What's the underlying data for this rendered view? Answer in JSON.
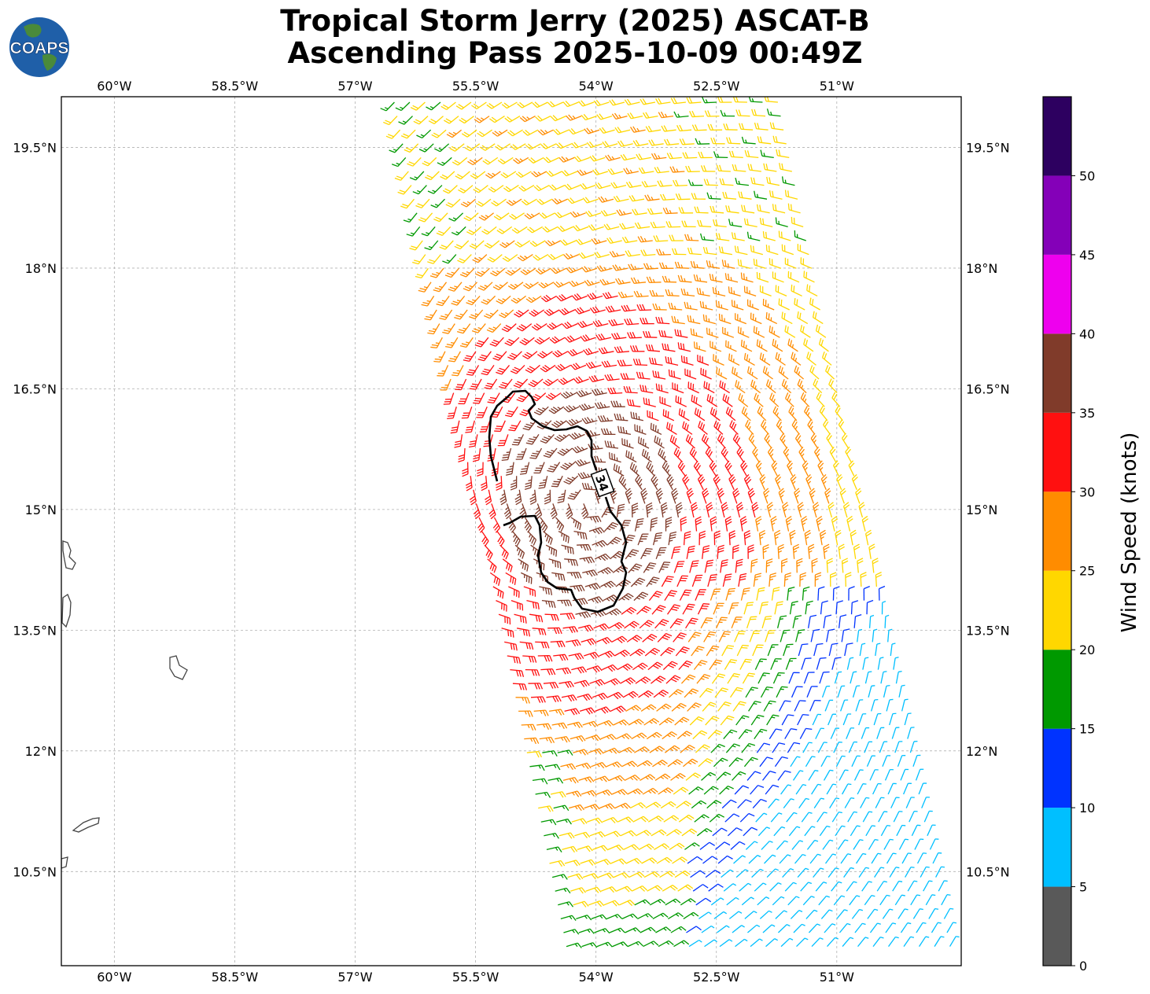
{
  "title": {
    "line1": "Tropical Storm Jerry (2025) ASCAT-B",
    "line2": "Ascending Pass 2025-10-09 00:49Z"
  },
  "logo": {
    "text": "COAPS",
    "ocean_color": "#1f5fa8",
    "land_color": "#4a8a3a"
  },
  "map": {
    "lon_range": [
      -60.66,
      -49.45
    ],
    "lat_range": [
      9.33,
      20.13
    ],
    "lon_ticks": [
      "60°W",
      "58.5°W",
      "57°W",
      "55.5°W",
      "54°W",
      "52.5°W",
      "51°W"
    ],
    "lat_ticks": [
      "19.5°N",
      "18°N",
      "16.5°N",
      "15°N",
      "13.5°N",
      "12°N",
      "10.5°N"
    ],
    "contour_label": "34",
    "land_outline_color": "#444444",
    "contour_color": "#000000"
  },
  "colorbar": {
    "label": "Wind Speed (knots)",
    "ticks": [
      "0",
      "5",
      "10",
      "15",
      "20",
      "25",
      "30",
      "35",
      "40",
      "45",
      "50"
    ],
    "bins": [
      {
        "min": 0,
        "max": 5,
        "color": "#595959"
      },
      {
        "min": 5,
        "max": 10,
        "color": "#00bfff"
      },
      {
        "min": 10,
        "max": 15,
        "color": "#0033ff"
      },
      {
        "min": 15,
        "max": 20,
        "color": "#009900"
      },
      {
        "min": 20,
        "max": 25,
        "color": "#ffd700"
      },
      {
        "min": 25,
        "max": 30,
        "color": "#ff8c00"
      },
      {
        "min": 30,
        "max": 35,
        "color": "#ff1010"
      },
      {
        "min": 35,
        "max": 40,
        "color": "#803b2a"
      },
      {
        "min": 40,
        "max": 45,
        "color": "#ee00ee"
      },
      {
        "min": 45,
        "max": 50,
        "color": "#8400b8"
      },
      {
        "min": 50,
        "max": 55,
        "color": "#2d0060"
      }
    ]
  }
}
